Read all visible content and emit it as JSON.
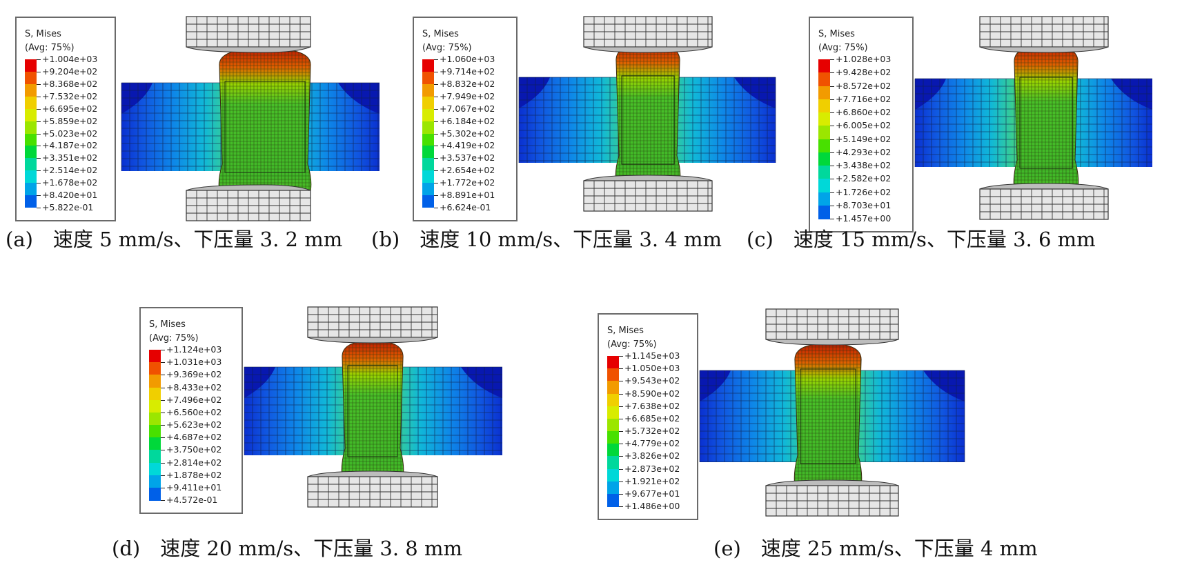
{
  "panels": [
    {
      "caption": "(a)　速度 5 mm/s、下压量 3. 2 mm",
      "legend_title": "S, Mises",
      "legend_sub": "(Avg: 75%)",
      "values": [
        "+1.004e+03",
        "+9.204e+02",
        "+8.368e+02",
        "+7.532e+02",
        "+6.695e+02",
        "+5.859e+02",
        "+5.023e+02",
        "+4.187e+02",
        "+3.351e+02",
        "+2.514e+02",
        "+1.678e+02",
        "+8.420e+01",
        "+5.822e-01"
      ]
    },
    {
      "caption": "(b)　速度 10 mm/s、下压量 3. 4 mm",
      "legend_title": "S, Mises",
      "legend_sub": "(Avg: 75%)",
      "values": [
        "+1.060e+03",
        "+9.714e+02",
        "+8.832e+02",
        "+7.949e+02",
        "+7.067e+02",
        "+6.184e+02",
        "+5.302e+02",
        "+4.419e+02",
        "+3.537e+02",
        "+2.654e+02",
        "+1.772e+02",
        "+8.891e+01",
        "+6.624e-01"
      ]
    },
    {
      "caption": "(c)　速度 15 mm/s、下压量 3. 6 mm",
      "legend_title": "S, Mises",
      "legend_sub": "(Avg: 75%)",
      "values": [
        "+1.028e+03",
        "+9.428e+02",
        "+8.572e+02",
        "+7.716e+02",
        "+6.860e+02",
        "+6.005e+02",
        "+5.149e+02",
        "+4.293e+02",
        "+3.438e+02",
        "+2.582e+02",
        "+1.726e+02",
        "+8.703e+01",
        "+1.457e+00"
      ]
    },
    {
      "caption": "(d)　速度 20 mm/s、下压量 3. 8 mm",
      "legend_title": "S, Mises",
      "legend_sub": "(Avg: 75%)",
      "values": [
        "+1.124e+03",
        "+1.031e+03",
        "+9.369e+02",
        "+8.433e+02",
        "+7.496e+02",
        "+6.560e+02",
        "+5.623e+02",
        "+4.687e+02",
        "+3.750e+02",
        "+2.814e+02",
        "+1.878e+02",
        "+9.411e+01",
        "+4.572e-01"
      ]
    },
    {
      "caption": "(e)　速度 25 mm/s、下压量 4 mm",
      "legend_title": "S, Mises",
      "legend_sub": "(Avg: 75%)",
      "values": [
        "+1.145e+03",
        "+1.050e+03",
        "+9.543e+02",
        "+8.590e+02",
        "+7.638e+02",
        "+6.685e+02",
        "+5.732e+02",
        "+4.779e+02",
        "+3.826e+02",
        "+2.873e+02",
        "+1.921e+02",
        "+9.677e+01",
        "+1.486e+00"
      ]
    }
  ],
  "colormap": [
    "#e60000",
    "#f05200",
    "#f29b00",
    "#f0cf00",
    "#d8ec00",
    "#9be600",
    "#48e000",
    "#00d83a",
    "#00d89c",
    "#00d8d8",
    "#00a4e8",
    "#0060e8",
    "#0010d8"
  ]
}
